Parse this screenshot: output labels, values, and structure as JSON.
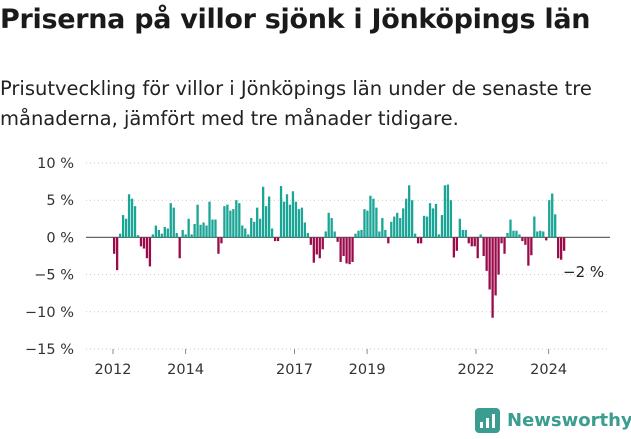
{
  "title": "Priserna på villor sjönk i Jönköpings län",
  "subtitle": "Prisutveckling för villor i Jönköpings län under de senaste tre månaderna, jämfört med tre månader tidigare.",
  "brand": "Newsworthy",
  "colors": {
    "positive": "#1aa596",
    "negative": "#9b0b4c",
    "brand": "#3a9d8f"
  },
  "chart_data": {
    "type": "bar",
    "ylim": [
      -15,
      10
    ],
    "y_ticks": [
      10,
      5,
      0,
      -5,
      -10,
      -15
    ],
    "y_tick_labels": [
      "10 %",
      "5 %",
      "0 %",
      "−5 %",
      "−10 %",
      "−15 %"
    ],
    "x_tick_years": [
      2012,
      2014,
      2017,
      2019,
      2022,
      2024
    ],
    "x_tick_labels": [
      "2012",
      "2014",
      "2017",
      "2019",
      "2022",
      "2024"
    ],
    "x_start_year": 2012,
    "annotation": "−2 %",
    "series": [
      {
        "values": [
          -2.2,
          -4.4,
          0.5,
          3.0,
          2.5,
          5.8,
          5.2,
          4.2,
          0.3,
          -1.2,
          -1.5,
          -2.8,
          -3.9,
          0.4,
          1.6,
          1.0,
          0.5,
          1.4,
          1.2,
          4.6,
          4.0,
          0.6,
          -2.8,
          1.0,
          0.4,
          2.5,
          0.4,
          1.8,
          4.4,
          1.7,
          2.0,
          1.6,
          4.8,
          2.4,
          2.4,
          -2.2,
          -0.8,
          4.2,
          4.4,
          3.6,
          3.8,
          5.0,
          4.6,
          1.6,
          1.2,
          0.4,
          2.6,
          2.1,
          4.0,
          2.5,
          6.8,
          4.2,
          5.5,
          1.2,
          -0.5,
          -0.5,
          6.9,
          4.8,
          5.8,
          4.4,
          6.2,
          4.8,
          3.8,
          4.0,
          2.0,
          0.6,
          -1.0,
          -3.4,
          -2.3,
          -2.8,
          -1.6,
          0.8,
          3.3,
          2.6,
          0.8,
          -0.6,
          -3.3,
          -2.5,
          -3.5,
          -3.6,
          -3.3,
          0.5,
          0.9,
          1.0,
          3.8,
          3.6,
          5.6,
          5.2,
          4.0,
          0.8,
          2.6,
          1.0,
          -0.8,
          2.1,
          2.8,
          3.3,
          2.6,
          3.9,
          5.2,
          7.0,
          5.0,
          0.5,
          -0.8,
          -0.8,
          2.9,
          2.8,
          4.6,
          3.9,
          4.5,
          0.4,
          3.0,
          7.0,
          7.1,
          5.0,
          -2.7,
          -1.8,
          2.5,
          1.0,
          1.0,
          -0.8,
          -1.2,
          -1.2,
          -2.8,
          0.4,
          -2.5,
          -4.5,
          -7.0,
          -10.8,
          -7.8,
          -5.0,
          -0.8,
          -2.2,
          0.6,
          2.4,
          0.9,
          0.9,
          0.4,
          -0.5,
          -1.0,
          -3.8,
          -2.4,
          2.8,
          0.8,
          0.9,
          0.8,
          -0.4,
          5.0,
          5.9,
          3.1,
          -2.8,
          -3.0,
          -1.8
        ]
      }
    ]
  }
}
